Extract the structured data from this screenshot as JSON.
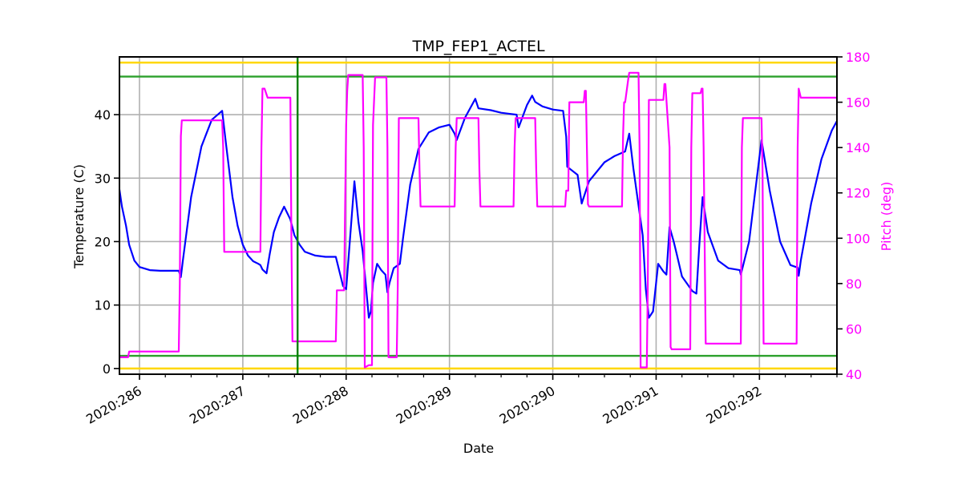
{
  "figure": {
    "title": "TMP_FEP1_ACTEL",
    "xlabel": "Date",
    "ylabel_left": "Temperature (C)",
    "ylabel_right": "Pitch (deg)"
  },
  "colors": {
    "temperature": "#0000ff",
    "pitch": "#ff00ff",
    "limit_yellow": "#ffd700",
    "limit_green": "#2ca02c",
    "marker_vertical": "#008000",
    "grid": "#b0b0b0",
    "right_axis_text": "#ff00ff"
  },
  "chart_data": {
    "type": "line",
    "title": "TMP_FEP1_ACTEL",
    "xlabel": "Date",
    "ylabel": "Temperature (C)",
    "y2label": "Pitch (deg)",
    "xlim": [
      285.806,
      292.75
    ],
    "ylim": [
      -0.9,
      49.1
    ],
    "y2lim": [
      40,
      180
    ],
    "grid": true,
    "x_ticks": [
      286,
      287,
      288,
      289,
      290,
      291,
      292
    ],
    "x_tick_labels": [
      "2020:286",
      "2020:287",
      "2020:288",
      "2020:289",
      "2020:290",
      "2020:291",
      "2020:292"
    ],
    "x_minor_tick_step": 0.25,
    "y_ticks": [
      0,
      10,
      20,
      30,
      40
    ],
    "y2_ticks": [
      40,
      60,
      80,
      100,
      120,
      140,
      160,
      180
    ],
    "hlines": [
      {
        "y": 48.2,
        "color": "#ffd700",
        "label": "yellow upper limit"
      },
      {
        "y": 46.0,
        "color": "#2ca02c",
        "label": "green upper limit"
      },
      {
        "y": 2.0,
        "color": "#2ca02c",
        "label": "green lower limit"
      },
      {
        "y": 0.0,
        "color": "#ffd700",
        "label": "yellow lower limit"
      }
    ],
    "vlines": [
      {
        "x": 287.53,
        "color": "#008000"
      }
    ],
    "series": [
      {
        "name": "Temperature",
        "axis": "left",
        "color": "#0000ff",
        "x": [
          285.806,
          285.83,
          285.87,
          285.9,
          285.95,
          286.0,
          286.1,
          286.2,
          286.3,
          286.38,
          286.4,
          286.42,
          286.5,
          286.6,
          286.7,
          286.8,
          286.84,
          286.9,
          286.95,
          287.0,
          287.05,
          287.1,
          287.15,
          287.17,
          287.19,
          287.23,
          287.26,
          287.3,
          287.35,
          287.4,
          287.46,
          287.5,
          287.55,
          287.6,
          287.7,
          287.8,
          287.9,
          287.94,
          287.97,
          288.0,
          288.08,
          288.12,
          288.16,
          288.18,
          288.22,
          288.24,
          288.26,
          288.3,
          288.34,
          288.38,
          288.4,
          288.42,
          288.46,
          288.52,
          288.55,
          288.62,
          288.7,
          288.8,
          288.9,
          289.0,
          289.05,
          289.07,
          289.15,
          289.25,
          289.28,
          289.4,
          289.5,
          289.6,
          289.65,
          289.67,
          289.75,
          289.8,
          289.83,
          289.9,
          290.0,
          290.1,
          290.13,
          290.14,
          290.17,
          290.24,
          290.28,
          290.35,
          290.5,
          290.6,
          290.7,
          290.74,
          290.78,
          290.87,
          290.9,
          290.93,
          290.97,
          291.02,
          291.07,
          291.1,
          291.13,
          291.17,
          291.2,
          291.25,
          291.35,
          291.39,
          291.42,
          291.45,
          291.5,
          291.6,
          291.7,
          291.81,
          291.82,
          291.9,
          292.02,
          292.1,
          292.2,
          292.3,
          292.37,
          292.38,
          292.4,
          292.5,
          292.6,
          292.7,
          292.75
        ],
        "y": [
          28.2,
          25.5,
          22.5,
          19.5,
          17.0,
          16.0,
          15.5,
          15.4,
          15.4,
          15.4,
          14.4,
          17.0,
          27.0,
          35.0,
          39.2,
          40.6,
          35.0,
          27.0,
          22.5,
          19.5,
          17.8,
          16.9,
          16.5,
          16.3,
          15.6,
          15.0,
          18.0,
          21.5,
          23.8,
          25.5,
          23.5,
          21.0,
          19.5,
          18.4,
          17.8,
          17.6,
          17.6,
          15.0,
          13.0,
          12.5,
          29.5,
          23.0,
          18.5,
          15.0,
          8.0,
          9.0,
          13.5,
          16.5,
          15.5,
          14.8,
          12.0,
          13.5,
          15.8,
          16.5,
          20.5,
          29.0,
          34.6,
          37.2,
          38.0,
          38.4,
          37.0,
          36.0,
          39.5,
          42.5,
          41.0,
          40.7,
          40.3,
          40.1,
          40.0,
          38.0,
          41.5,
          43.0,
          42.0,
          41.3,
          40.8,
          40.6,
          36.5,
          31.8,
          31.4,
          30.5,
          26.0,
          29.5,
          32.5,
          33.5,
          34.2,
          37.0,
          31.5,
          21.0,
          12.5,
          8.0,
          9.0,
          16.5,
          15.3,
          14.8,
          22.3,
          20.0,
          18.0,
          14.5,
          12.2,
          11.8,
          20.0,
          27.0,
          21.5,
          17.0,
          15.8,
          15.5,
          14.8,
          20.0,
          36.0,
          28.0,
          20.0,
          16.3,
          15.9,
          14.6,
          17.0,
          26.0,
          33.0,
          37.5,
          39.0
        ]
      },
      {
        "name": "Pitch",
        "axis": "right",
        "color": "#ff00ff",
        "x": [
          285.806,
          285.89,
          285.9,
          286.38,
          286.39,
          286.4,
          286.41,
          286.42,
          286.8,
          286.81,
          286.82,
          287.17,
          287.18,
          287.19,
          287.21,
          287.24,
          287.46,
          287.47,
          287.48,
          287.9,
          287.91,
          287.92,
          287.98,
          288.0,
          288.01,
          288.02,
          288.04,
          288.05,
          288.16,
          288.17,
          288.18,
          288.22,
          288.25,
          288.26,
          288.28,
          288.39,
          288.4,
          288.41,
          288.49,
          288.5,
          288.51,
          288.7,
          288.71,
          288.72,
          289.05,
          289.06,
          289.07,
          289.28,
          289.29,
          289.3,
          289.62,
          289.63,
          289.64,
          289.83,
          289.84,
          289.85,
          290.12,
          290.13,
          290.15,
          290.16,
          290.3,
          290.31,
          290.32,
          290.33,
          290.34,
          290.35,
          290.67,
          290.68,
          290.69,
          290.7,
          290.73,
          290.74,
          290.75,
          290.83,
          290.84,
          290.85,
          290.91,
          290.92,
          290.93,
          291.07,
          291.08,
          291.09,
          291.13,
          291.14,
          291.15,
          291.2,
          291.21,
          291.33,
          291.34,
          291.35,
          291.43,
          291.44,
          291.45,
          291.46,
          291.48,
          291.82,
          291.83,
          291.84,
          292.02,
          292.03,
          292.04,
          292.36,
          292.37,
          292.38,
          292.4,
          292.75
        ],
        "y": [
          47.5,
          47.5,
          50.0,
          50.0,
          80.0,
          145.0,
          152.0,
          152.0,
          152.0,
          140.0,
          94.0,
          94.0,
          140.0,
          166.0,
          166.0,
          162.0,
          162.0,
          100.0,
          54.5,
          54.5,
          77.0,
          77.0,
          77.0,
          150.0,
          165.0,
          172.0,
          172.0,
          172.0,
          172.0,
          140.0,
          43.0,
          44.0,
          44.0,
          150.0,
          171.0,
          171.0,
          140.0,
          47.5,
          47.5,
          80.0,
          153.0,
          153.0,
          130.0,
          114.0,
          114.0,
          140.0,
          153.0,
          153.0,
          130.0,
          114.0,
          114.0,
          140.0,
          153.0,
          153.0,
          130.0,
          114.0,
          114.0,
          121.0,
          121.0,
          160.0,
          160.0,
          165.0,
          165.0,
          140.0,
          115.0,
          114.0,
          114.0,
          145.0,
          160.0,
          160.0,
          170.0,
          173.0,
          173.0,
          173.0,
          140.0,
          43.0,
          43.0,
          80.0,
          161.0,
          161.0,
          168.0,
          168.0,
          140.0,
          52.0,
          51.0,
          51.0,
          51.0,
          51.0,
          140.0,
          164.0,
          164.0,
          166.0,
          166.0,
          140.0,
          53.5,
          53.5,
          140.0,
          153.0,
          153.0,
          130.0,
          53.5,
          53.5,
          140.0,
          166.0,
          162.0,
          162.0
        ]
      }
    ]
  }
}
